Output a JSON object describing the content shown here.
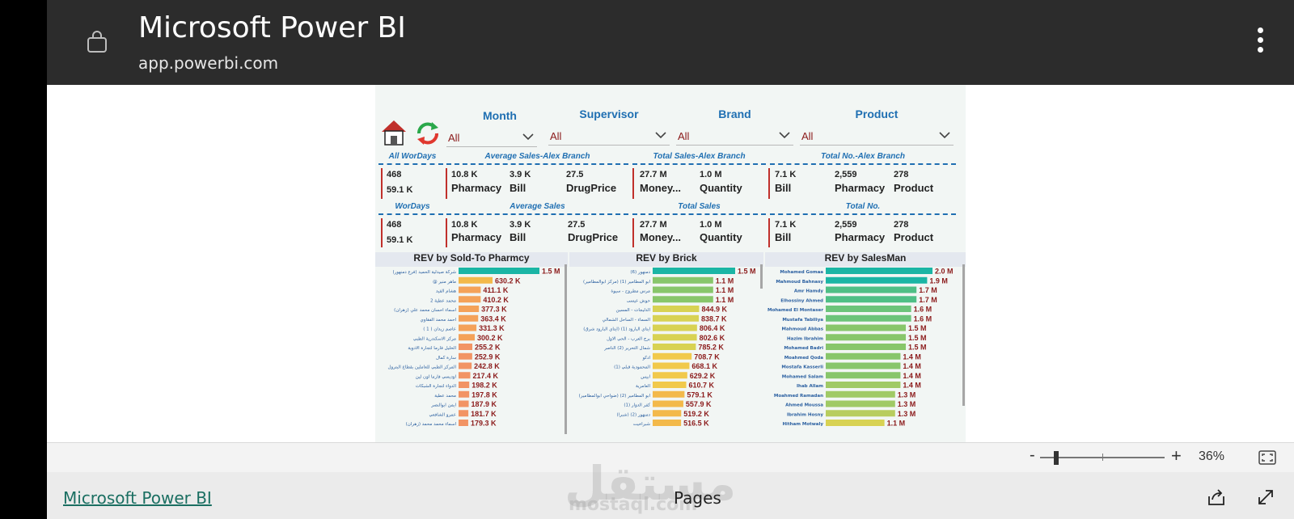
{
  "app": {
    "title": "Microsoft Power BI",
    "url": "app.powerbi.com"
  },
  "filters": [
    {
      "title": "Month",
      "value": "All"
    },
    {
      "title": "Supervisor",
      "value": "All"
    },
    {
      "title": "Brand",
      "value": "All"
    },
    {
      "title": "Product",
      "value": "All"
    }
  ],
  "row1": {
    "sections": [
      "All WorDays",
      "Average Sales-Alex Branch",
      "Total Sales-Alex Branch",
      "Total No.-Alex Branch"
    ],
    "workdays": [
      "468",
      "59.1 K"
    ],
    "avg": [
      {
        "value": "10.8 K",
        "label": "Pharmacy"
      },
      {
        "value": "3.9 K",
        "label": "Bill"
      },
      {
        "value": "27.5",
        "label": "DrugPrice"
      }
    ],
    "total": [
      {
        "value": "27.7 M",
        "label": "Money..."
      },
      {
        "value": "1.0 M",
        "label": "Quantity"
      }
    ],
    "count": [
      {
        "value": "7.1 K",
        "label": "Bill"
      },
      {
        "value": "2,559",
        "label": "Pharmacy"
      },
      {
        "value": "278",
        "label": "Product"
      }
    ]
  },
  "row2": {
    "sections": [
      "WorDays",
      "Average Sales",
      "Total Sales",
      "Total No."
    ],
    "workdays": [
      "468",
      "59.1 K"
    ],
    "avg": [
      {
        "value": "10.8 K",
        "label": "Pharmacy"
      },
      {
        "value": "3.9 K",
        "label": "Bill"
      },
      {
        "value": "27.5",
        "label": "DrugPrice"
      }
    ],
    "total": [
      {
        "value": "27.7 M",
        "label": "Money..."
      },
      {
        "value": "1.0 M",
        "label": "Quantity"
      }
    ],
    "count": [
      {
        "value": "7.1 K",
        "label": "Bill"
      },
      {
        "value": "2,559",
        "label": "Pharmacy"
      },
      {
        "value": "278",
        "label": "Product"
      }
    ]
  },
  "chart_data": [
    {
      "type": "bar",
      "title": "REV by Sold-To Pharmcy",
      "categories": [
        "شركة صيدلية الحميد (فرع دمنهور)",
        "@ ماهر منير",
        "هشام الفيد",
        "محمد عطية 2",
        "اسماء احسان محمد علي (زهران)",
        "احمد محمد الفقاوي",
        "عاصم زيدان ( 1 )",
        "مركز الاسكندرية الطبي",
        "الخليل فارما لتجارة الادوية",
        "سارة كمال",
        "المركز الطبي للعاملين بقطاع البترول",
        "اوديسي فارما اون لين",
        "الدواء لتجارة الشبكات",
        "محمد عطية",
        "ايمن ابوالنصر",
        "عمرو الشافعي",
        "اسماء محمد محمد (زهران)"
      ],
      "values": [
        1500000,
        630200,
        411100,
        410200,
        377300,
        363400,
        331300,
        300200,
        255200,
        252900,
        242800,
        217400,
        198200,
        197800,
        187900,
        181700,
        179300
      ],
      "labels": [
        "1.5 M",
        "630.2 K",
        "411.1 K",
        "410.2 K",
        "377.3 K",
        "363.4 K",
        "331.3 K",
        "300.2 K",
        "255.2 K",
        "252.9 K",
        "242.8 K",
        "217.4 K",
        "198.2 K",
        "197.8 K",
        "187.9 K",
        "181.7 K",
        "179.3 K"
      ],
      "colors": [
        "#1bb5a5",
        "#f3b94a",
        "#f4a259",
        "#f4a259",
        "#f4a259",
        "#f4a259",
        "#f4a259",
        "#f4a259",
        "#f29464",
        "#f29464",
        "#f29464",
        "#f29464",
        "#f29464",
        "#f29464",
        "#f29464",
        "#f29464",
        "#f29464"
      ]
    },
    {
      "type": "bar",
      "title": "REV by Brick",
      "categories": [
        "دمنهور (6)",
        "ابو المطامير (1) (مركز ابوالمطامير)",
        "مرس مطروح - سيوة",
        "حوش عيسى",
        "الدليجات - المسين",
        "السماء - الساحل الشمالي",
        "ايتاي البارود (1) (ايتاي البارود شرق)",
        "برج العرب - الحي الاول",
        "شمال التحرير (2) الناصر",
        "ادكو",
        "المحمودية قبلي (1)",
        "ابيس",
        "العامرية",
        "ابو المطامير (2) (ضواحي ابوالمطامير)",
        "كفر الدوار (1)",
        "دمنهور (2) (شبرا)",
        "شبراخيت"
      ],
      "values": [
        1500000,
        1100000,
        1100000,
        1100000,
        844900,
        838700,
        806400,
        802600,
        785200,
        708700,
        668100,
        629200,
        610700,
        579100,
        557900,
        519200,
        516500
      ],
      "labels": [
        "1.5 M",
        "1.1 M",
        "1.1 M",
        "1.1 M",
        "844.9 K",
        "838.7 K",
        "806.4 K",
        "802.6 K",
        "785.2 K",
        "708.7 K",
        "668.1 K",
        "629.2 K",
        "610.7 K",
        "579.1 K",
        "557.9 K",
        "519.2 K",
        "516.5 K"
      ],
      "colors": [
        "#1bb5a5",
        "#88c66b",
        "#88c66b",
        "#88c66b",
        "#d8d253",
        "#d8d253",
        "#d8d253",
        "#d8d253",
        "#d8d253",
        "#f1c94b",
        "#f1c94b",
        "#f1c94b",
        "#f1c94b",
        "#f3b94a",
        "#f3b94a",
        "#f3b94a",
        "#f3b94a"
      ]
    },
    {
      "type": "bar",
      "title": "REV by SalesMan",
      "categories": [
        "Mohamed Gomaa",
        "Mahmoud Bahnasy",
        "Amr Hamdy",
        "Elhossiny Ahmed",
        "Mohamed El Montaser",
        "Mustafa Tabiliya",
        "Mahmoud Abbas",
        "Hazim Ibrahim",
        "Mohamed Badri",
        "Moahmed Qoda",
        "Mostafa Kasserli",
        "Mohamed Salam",
        "Ihab Allam",
        "Moahmed Ramadan",
        "Ahmed Moussa",
        "Ibrahim Hosny",
        "Hitham Motwaly"
      ],
      "values": [
        2000000,
        1900000,
        1700000,
        1700000,
        1600000,
        1600000,
        1500000,
        1500000,
        1500000,
        1400000,
        1400000,
        1400000,
        1400000,
        1300000,
        1300000,
        1300000,
        1100000
      ],
      "labels": [
        "2.0 M",
        "1.9 M",
        "1.7 M",
        "1.7 M",
        "1.6 M",
        "1.6 M",
        "1.5 M",
        "1.5 M",
        "1.5 M",
        "1.4 M",
        "1.4 M",
        "1.4 M",
        "1.4 M",
        "1.3 M",
        "1.3 M",
        "1.3 M",
        "1.1 M"
      ],
      "colors": [
        "#1bb5a5",
        "#1bb5a5",
        "#4fbf86",
        "#4fbf86",
        "#6cc47a",
        "#6cc47a",
        "#88c66b",
        "#88c66b",
        "#88c66b",
        "#88c66b",
        "#88c66b",
        "#88c66b",
        "#a0ca65",
        "#a0ca65",
        "#a0ca65",
        "#b8cd5e",
        "#d8d253"
      ]
    }
  ],
  "bottom": {
    "zoom": "36%",
    "footer_link": "Microsoft Power BI",
    "pages": "Pages",
    "watermark": "مستقل",
    "watermark_sub": "mostaql.com"
  },
  "colors": {
    "accent_blue": "#1f6fb2",
    "value_red": "#8b1a1a"
  }
}
